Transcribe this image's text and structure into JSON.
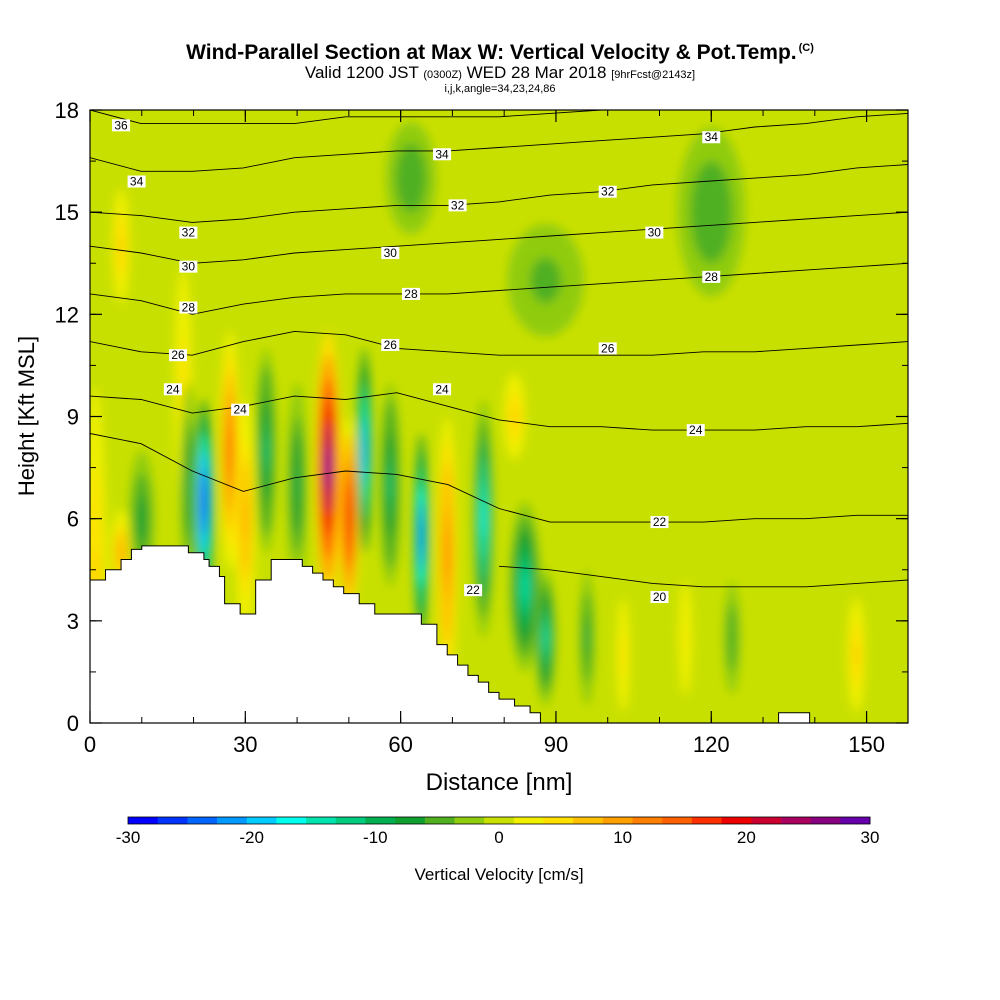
{
  "title": {
    "main": "Wind-Parallel Section at Max W: Vertical Velocity & Pot.Temp.",
    "main_mark": "(C)",
    "valid_prefix": "Valid 1200 JST",
    "valid_z": "(0300Z)",
    "valid_date": "WED 28 Mar 2018",
    "valid_fcst": "[9hrFcst@2143z]",
    "indices": "i,j,k,angle=34,23,24,86"
  },
  "chart_data": {
    "type": "heatmap",
    "xlabel": "Distance [nm]",
    "ylabel": "Height [Kft MSL]",
    "xlim": [
      0,
      158
    ],
    "ylim": [
      0,
      18
    ],
    "x_ticks": [
      "0",
      "30",
      "60",
      "90",
      "120",
      "150"
    ],
    "x_tick_values": [
      0,
      30,
      60,
      90,
      120,
      150
    ],
    "y_ticks": [
      "0",
      "3",
      "6",
      "9",
      "12",
      "15",
      "18"
    ],
    "y_tick_values": [
      0,
      3,
      6,
      9,
      12,
      15,
      18
    ],
    "x_minor_step": 10,
    "y_minor_step": 1.5,
    "colorbar": {
      "label": "Vertical Velocity [cm/s]",
      "ticks": [
        "-30",
        "-20",
        "-10",
        "0",
        "10",
        "20",
        "30"
      ],
      "tick_values": [
        -30,
        -20,
        -10,
        0,
        10,
        20,
        30
      ],
      "colors": [
        "#0000ff",
        "#0033ff",
        "#0066ff",
        "#0099ff",
        "#00ccff",
        "#00ffee",
        "#00e5b0",
        "#00cc80",
        "#00b050",
        "#10a030",
        "#50b020",
        "#90cc10",
        "#c8e000",
        "#f0f000",
        "#ffe000",
        "#ffc000",
        "#ffa000",
        "#ff8000",
        "#ff6000",
        "#ff3000",
        "#ee0000",
        "#cc0030",
        "#aa0060",
        "#880080",
        "#6600aa"
      ]
    },
    "terrain": [
      [
        0,
        4.2
      ],
      [
        3,
        4.2
      ],
      [
        3,
        4.5
      ],
      [
        6,
        4.5
      ],
      [
        6,
        4.8
      ],
      [
        8,
        4.8
      ],
      [
        8,
        5.1
      ],
      [
        10,
        5.1
      ],
      [
        10,
        5.2
      ],
      [
        19,
        5.2
      ],
      [
        19,
        5
      ],
      [
        22,
        5
      ],
      [
        22,
        4.8
      ],
      [
        23,
        4.8
      ],
      [
        23,
        4.6
      ],
      [
        25,
        4.6
      ],
      [
        25,
        4.3
      ],
      [
        26,
        4.3
      ],
      [
        26,
        3.5
      ],
      [
        29,
        3.5
      ],
      [
        29,
        3.2
      ],
      [
        32,
        3.2
      ],
      [
        32,
        4.2
      ],
      [
        35,
        4.2
      ],
      [
        35,
        4.8
      ],
      [
        41,
        4.8
      ],
      [
        41,
        4.6
      ],
      [
        43,
        4.6
      ],
      [
        43,
        4.4
      ],
      [
        45,
        4.4
      ],
      [
        45,
        4.2
      ],
      [
        47,
        4.2
      ],
      [
        47,
        4
      ],
      [
        49,
        4
      ],
      [
        49,
        3.8
      ],
      [
        52,
        3.8
      ],
      [
        52,
        3.5
      ],
      [
        55,
        3.5
      ],
      [
        55,
        3.2
      ],
      [
        64,
        3.2
      ],
      [
        64,
        2.9
      ],
      [
        67,
        2.9
      ],
      [
        67,
        2.3
      ],
      [
        69,
        2.3
      ],
      [
        69,
        2
      ],
      [
        71,
        2
      ],
      [
        71,
        1.7
      ],
      [
        73,
        1.7
      ],
      [
        73,
        1.4
      ],
      [
        75,
        1.4
      ],
      [
        75,
        1.2
      ],
      [
        77,
        1.2
      ],
      [
        77,
        0.9
      ],
      [
        79,
        0.9
      ],
      [
        79,
        0.7
      ],
      [
        82,
        0.7
      ],
      [
        82,
        0.5
      ],
      [
        85,
        0.5
      ],
      [
        85,
        0.3
      ],
      [
        87,
        0.3
      ],
      [
        87,
        0
      ],
      [
        133,
        0
      ],
      [
        133,
        0.3
      ],
      [
        139,
        0.3
      ],
      [
        139,
        0
      ],
      [
        158,
        0
      ]
    ],
    "features": [
      {
        "x": 1,
        "y": 4,
        "w": 5,
        "h": 14,
        "value": 7
      },
      {
        "x": 6,
        "y": 14,
        "w": 4,
        "h": 4,
        "value": 6
      },
      {
        "x": 6,
        "y": 5,
        "w": 4,
        "h": 2.5,
        "value": 9
      },
      {
        "x": 10,
        "y": 6,
        "w": 5,
        "h": 4,
        "value": -8
      },
      {
        "x": 18,
        "y": 10,
        "w": 4,
        "h": 8,
        "value": 5
      },
      {
        "x": 22,
        "y": 6.5,
        "w": 4,
        "h": 6,
        "value": -28
      },
      {
        "x": 19,
        "y": 7,
        "w": 3,
        "h": 6,
        "value": -10
      },
      {
        "x": 27,
        "y": 8,
        "w": 4,
        "h": 7,
        "value": 14
      },
      {
        "x": 30,
        "y": 6,
        "w": 4,
        "h": 7,
        "value": 10
      },
      {
        "x": 34,
        "y": 8,
        "w": 4,
        "h": 6,
        "value": -12
      },
      {
        "x": 40,
        "y": 7,
        "w": 4,
        "h": 6,
        "value": -10
      },
      {
        "x": 46,
        "y": 7.5,
        "w": 5,
        "h": 8,
        "value": 28
      },
      {
        "x": 50,
        "y": 6,
        "w": 4,
        "h": 6,
        "value": 20
      },
      {
        "x": 53,
        "y": 8,
        "w": 3,
        "h": 6,
        "value": -22
      },
      {
        "x": 58,
        "y": 7,
        "w": 4,
        "h": 6,
        "value": -12
      },
      {
        "x": 64,
        "y": 5.5,
        "w": 3,
        "h": 6,
        "value": -26
      },
      {
        "x": 69,
        "y": 5,
        "w": 4,
        "h": 8,
        "value": 12
      },
      {
        "x": 76,
        "y": 6,
        "w": 4,
        "h": 7,
        "value": -18
      },
      {
        "x": 84,
        "y": 4,
        "w": 6,
        "h": 5,
        "value": -15
      },
      {
        "x": 88,
        "y": 2.5,
        "w": 4,
        "h": 4,
        "value": -14
      },
      {
        "x": 96,
        "y": 2.5,
        "w": 3,
        "h": 4,
        "value": -9
      },
      {
        "x": 103,
        "y": 2,
        "w": 3,
        "h": 4,
        "value": 5
      },
      {
        "x": 115,
        "y": 2.5,
        "w": 3,
        "h": 4,
        "value": 4
      },
      {
        "x": 124,
        "y": 2.5,
        "w": 4,
        "h": 4,
        "value": -6
      },
      {
        "x": 148,
        "y": 2,
        "w": 4,
        "h": 4,
        "value": 7
      },
      {
        "x": 62,
        "y": 16,
        "w": 12,
        "h": 4,
        "value": -6
      },
      {
        "x": 88,
        "y": 13,
        "w": 18,
        "h": 4,
        "value": -5
      },
      {
        "x": 120,
        "y": 15,
        "w": 16,
        "h": 6,
        "value": -6
      },
      {
        "x": 82,
        "y": 9,
        "w": 5,
        "h": 3,
        "value": 6
      }
    ],
    "contours": [
      {
        "label": "36",
        "ys": [
          18,
          17.6,
          17.6,
          17.6,
          17.6,
          17.8,
          17.8,
          17.8,
          17.8,
          17.9,
          18,
          18,
          18,
          18,
          18,
          18,
          18
        ],
        "labels": [
          {
            "x": 6,
            "y": 17.55
          }
        ]
      },
      {
        "label": "34",
        "ys": [
          16.6,
          16.2,
          16.2,
          16.3,
          16.6,
          16.7,
          16.8,
          16.8,
          16.9,
          17,
          17.1,
          17.2,
          17.3,
          17.5,
          17.6,
          17.8,
          17.9
        ],
        "labels": [
          {
            "x": 9,
            "y": 15.9
          },
          {
            "x": 68,
            "y": 16.7
          },
          {
            "x": 120,
            "y": 17.2
          }
        ]
      },
      {
        "label": "32",
        "ys": [
          15,
          14.9,
          14.7,
          14.8,
          15,
          15.1,
          15.2,
          15.2,
          15.3,
          15.5,
          15.6,
          15.8,
          15.9,
          16,
          16.1,
          16.3,
          16.4
        ],
        "labels": [
          {
            "x": 19,
            "y": 14.4
          },
          {
            "x": 71,
            "y": 15.2
          },
          {
            "x": 100,
            "y": 15.6
          }
        ]
      },
      {
        "label": "30",
        "ys": [
          14,
          13.8,
          13.5,
          13.6,
          13.8,
          13.9,
          14,
          14.1,
          14.2,
          14.3,
          14.4,
          14.5,
          14.6,
          14.7,
          14.8,
          14.9,
          15
        ],
        "labels": [
          {
            "x": 19,
            "y": 13.4
          },
          {
            "x": 58,
            "y": 13.8
          },
          {
            "x": 109,
            "y": 14.4
          }
        ]
      },
      {
        "label": "28",
        "ys": [
          12.6,
          12.4,
          12,
          12.3,
          12.5,
          12.6,
          12.6,
          12.6,
          12.7,
          12.8,
          12.9,
          13,
          13.1,
          13.2,
          13.3,
          13.4,
          13.5
        ],
        "labels": [
          {
            "x": 19,
            "y": 12.2
          },
          {
            "x": 62,
            "y": 12.6
          },
          {
            "x": 120,
            "y": 13.1
          }
        ]
      },
      {
        "label": "26",
        "ys": [
          11.2,
          10.9,
          10.8,
          11.2,
          11.5,
          11.4,
          11,
          10.9,
          10.8,
          10.8,
          10.8,
          10.8,
          10.9,
          10.9,
          11,
          11.1,
          11.2
        ],
        "labels": [
          {
            "x": 17,
            "y": 10.8
          },
          {
            "x": 58,
            "y": 11.1
          },
          {
            "x": 100,
            "y": 11
          }
        ]
      },
      {
        "label": "24",
        "ys": [
          9.6,
          9.5,
          9.1,
          9.3,
          9.6,
          9.5,
          9.7,
          9.3,
          8.9,
          8.7,
          8.7,
          8.6,
          8.6,
          8.6,
          8.7,
          8.7,
          8.8
        ],
        "labels": [
          {
            "x": 16,
            "y": 9.8
          },
          {
            "x": 29,
            "y": 9.2
          },
          {
            "x": 68,
            "y": 9.8
          },
          {
            "x": 117,
            "y": 8.6
          }
        ]
      },
      {
        "label": "22",
        "ys": [
          8.5,
          8.2,
          7.4,
          6.8,
          7.2,
          7.4,
          7.3,
          7,
          6.3,
          5.9,
          5.9,
          5.9,
          5.9,
          6,
          6,
          6.1,
          6.1
        ],
        "labels": [
          {
            "x": 74,
            "y": 3.9
          },
          {
            "x": 110,
            "y": 5.9
          }
        ]
      },
      {
        "label": "20",
        "ys": [
          null,
          null,
          null,
          null,
          null,
          null,
          null,
          null,
          4.6,
          4.5,
          4.3,
          4.1,
          4,
          4,
          4,
          4.1,
          4.2
        ],
        "labels": [
          {
            "x": 110,
            "y": 3.7
          }
        ]
      }
    ]
  }
}
